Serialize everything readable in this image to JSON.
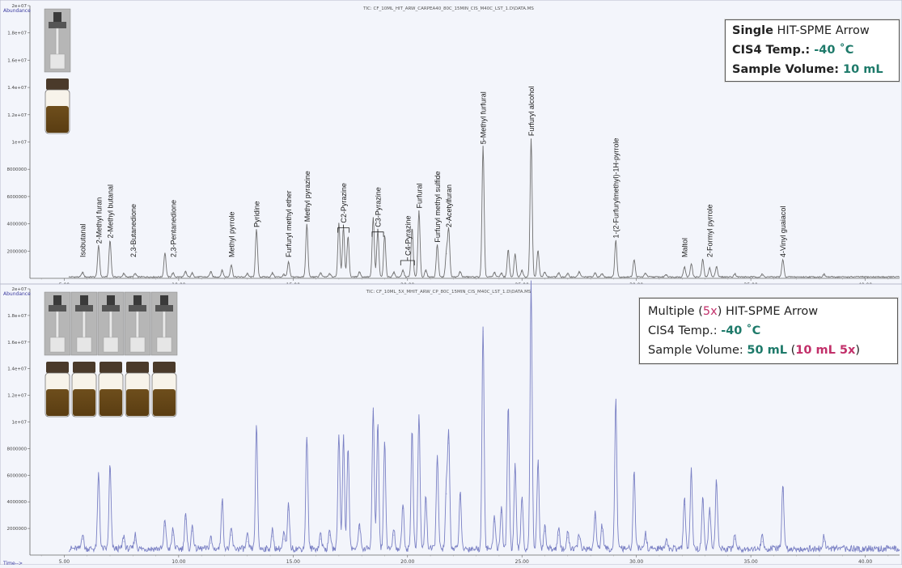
{
  "chart_data": [
    {
      "type": "line",
      "panel": "top",
      "title": "TIC: CF_10ML_HIT_ARW_CARPEA40_80C_15MIN_CIS_M40C_LST_1.D\\DATA.MS",
      "y_axis_label": "Abundance",
      "x_axis_label": "Time-->",
      "xlim": [
        3.5,
        41.5
      ],
      "ylim": [
        0,
        20000000
      ],
      "x_ticks": [
        5,
        10,
        15,
        20,
        25,
        30,
        35,
        40
      ],
      "x_tick_labels": [
        "5.00",
        "10.00",
        "15.00",
        "20.00",
        "25.00",
        "30.00",
        "35.00",
        "40.00"
      ],
      "y_ticks": [
        2000000,
        4000000,
        6000000,
        8000000,
        10000000,
        12000000,
        14000000,
        16000000,
        18000000,
        20000000
      ],
      "y_tick_labels": [
        "2000000",
        "4000000",
        "6000000",
        "8000000",
        "1e+07",
        "1.2e+07",
        "1.4e+07",
        "1.6e+07",
        "1.8e+07",
        "2e+07"
      ],
      "line_color": "#707070",
      "peaks": [
        {
          "rt": 5.8,
          "h": 350000
        },
        {
          "rt": 6.5,
          "h": 2300000
        },
        {
          "rt": 7.0,
          "h": 2700000
        },
        {
          "rt": 7.6,
          "h": 250000
        },
        {
          "rt": 8.1,
          "h": 250000
        },
        {
          "rt": 9.4,
          "h": 1800000
        },
        {
          "rt": 9.75,
          "h": 300000
        },
        {
          "rt": 10.3,
          "h": 400000
        },
        {
          "rt": 10.6,
          "h": 300000
        },
        {
          "rt": 11.4,
          "h": 400000
        },
        {
          "rt": 11.9,
          "h": 500000
        },
        {
          "rt": 12.3,
          "h": 900000
        },
        {
          "rt": 13.0,
          "h": 250000
        },
        {
          "rt": 13.4,
          "h": 3500000
        },
        {
          "rt": 14.1,
          "h": 300000
        },
        {
          "rt": 14.6,
          "h": 200000
        },
        {
          "rt": 14.8,
          "h": 1100000
        },
        {
          "rt": 15.6,
          "h": 3900000
        },
        {
          "rt": 16.2,
          "h": 300000
        },
        {
          "rt": 16.6,
          "h": 250000
        },
        {
          "rt": 17.0,
          "h": 4000000
        },
        {
          "rt": 17.2,
          "h": 3700000
        },
        {
          "rt": 17.4,
          "h": 3000000
        },
        {
          "rt": 17.9,
          "h": 400000
        },
        {
          "rt": 18.5,
          "h": 4400000
        },
        {
          "rt": 18.7,
          "h": 3400000
        },
        {
          "rt": 19.0,
          "h": 3100000
        },
        {
          "rt": 19.4,
          "h": 350000
        },
        {
          "rt": 19.8,
          "h": 500000
        },
        {
          "rt": 20.2,
          "h": 3600000
        },
        {
          "rt": 20.5,
          "h": 4900000
        },
        {
          "rt": 20.8,
          "h": 500000
        },
        {
          "rt": 21.3,
          "h": 2400000
        },
        {
          "rt": 21.7,
          "h": 1800000
        },
        {
          "rt": 21.8,
          "h": 3500000
        },
        {
          "rt": 22.3,
          "h": 400000
        },
        {
          "rt": 23.3,
          "h": 9600000
        },
        {
          "rt": 23.8,
          "h": 350000
        },
        {
          "rt": 24.1,
          "h": 300000
        },
        {
          "rt": 24.4,
          "h": 2000000
        },
        {
          "rt": 24.7,
          "h": 1700000
        },
        {
          "rt": 25.0,
          "h": 500000
        },
        {
          "rt": 25.4,
          "h": 10200000
        },
        {
          "rt": 25.7,
          "h": 2000000
        },
        {
          "rt": 26.0,
          "h": 400000
        },
        {
          "rt": 26.6,
          "h": 300000
        },
        {
          "rt": 27.0,
          "h": 250000
        },
        {
          "rt": 27.5,
          "h": 400000
        },
        {
          "rt": 28.2,
          "h": 300000
        },
        {
          "rt": 28.5,
          "h": 250000
        },
        {
          "rt": 29.1,
          "h": 2700000
        },
        {
          "rt": 29.9,
          "h": 1300000
        },
        {
          "rt": 30.4,
          "h": 300000
        },
        {
          "rt": 31.3,
          "h": 200000
        },
        {
          "rt": 32.1,
          "h": 750000
        },
        {
          "rt": 32.4,
          "h": 1000000
        },
        {
          "rt": 32.9,
          "h": 1300000
        },
        {
          "rt": 33.2,
          "h": 700000
        },
        {
          "rt": 33.5,
          "h": 800000
        },
        {
          "rt": 34.3,
          "h": 250000
        },
        {
          "rt": 35.5,
          "h": 200000
        },
        {
          "rt": 36.4,
          "h": 1300000
        },
        {
          "rt": 38.2,
          "h": 200000
        }
      ],
      "labels": [
        {
          "text": "Isobutanal",
          "rt": 5.8
        },
        {
          "text": "2-Methyl furan",
          "rt": 6.5
        },
        {
          "text": "2-Methyl butanal",
          "rt": 7.0
        },
        {
          "text": "2,3-Butanedione",
          "rt": 8.0
        },
        {
          "text": "2,3-Pentanedione",
          "rt": 9.75
        },
        {
          "text": "Methyl pyrrole",
          "rt": 12.3
        },
        {
          "text": "Pyridine",
          "rt": 13.4
        },
        {
          "text": "Furfuryl methyl ether",
          "rt": 14.8
        },
        {
          "text": "Methyl pyrazine",
          "rt": 15.6
        },
        {
          "text": "C2-Pyrazine",
          "rt": 17.2,
          "bracket": [
            16.95,
            17.45
          ]
        },
        {
          "text": "C3-Pyrazine",
          "rt": 18.7,
          "bracket": [
            18.45,
            18.95
          ]
        },
        {
          "text": "C4-Pyrazine",
          "rt": 20.0,
          "bracket": [
            19.7,
            20.3
          ]
        },
        {
          "text": "Furfural",
          "rt": 20.5
        },
        {
          "text": "Furfuryl methyl sulfide",
          "rt": 21.3
        },
        {
          "text": "2-Acetylfuran",
          "rt": 21.8
        },
        {
          "text": "5-Methyl furfural",
          "rt": 23.3
        },
        {
          "text": "Furfuryl alcohol",
          "rt": 25.4
        },
        {
          "text": "1-(2-Furfurylmethyl)-1H-pyrrole",
          "rt": 29.1
        },
        {
          "text": "Maltol",
          "rt": 32.1
        },
        {
          "text": "2-Formyl pyrrole",
          "rt": 33.2
        },
        {
          "text": "4-Vinyl guaiacol",
          "rt": 36.4
        }
      ]
    },
    {
      "type": "line",
      "panel": "bottom",
      "title": "TIC: CF_10ML_5X_MHIT_ARW_CP_80C_15MIN_CIS_M40C_LST_1.D\\DATA.MS",
      "y_axis_label": "Abundance",
      "x_axis_label": "Time-->",
      "xlim": [
        3.5,
        41.5
      ],
      "ylim": [
        0,
        20000000
      ],
      "x_ticks": [
        5,
        10,
        15,
        20,
        25,
        30,
        35,
        40
      ],
      "x_tick_labels": [
        "5.00",
        "10.00",
        "15.00",
        "20.00",
        "25.00",
        "30.00",
        "35.00",
        "40.00"
      ],
      "y_ticks": [
        2000000,
        4000000,
        6000000,
        8000000,
        10000000,
        12000000,
        14000000,
        16000000,
        18000000,
        20000000
      ],
      "y_tick_labels": [
        "2000000",
        "4000000",
        "6000000",
        "8000000",
        "1e+07",
        "1.2e+07",
        "1.4e+07",
        "1.6e+07",
        "1.8e+07",
        "2e+07"
      ],
      "line_color": "#7a80c4",
      "peaks": [
        {
          "rt": 5.8,
          "h": 1200000
        },
        {
          "rt": 6.5,
          "h": 5700000
        },
        {
          "rt": 7.0,
          "h": 6300000
        },
        {
          "rt": 7.6,
          "h": 1000000
        },
        {
          "rt": 8.1,
          "h": 1100000
        },
        {
          "rt": 9.4,
          "h": 2200000
        },
        {
          "rt": 9.75,
          "h": 1500000
        },
        {
          "rt": 10.3,
          "h": 2700000
        },
        {
          "rt": 10.6,
          "h": 1800000
        },
        {
          "rt": 11.4,
          "h": 900000
        },
        {
          "rt": 11.9,
          "h": 3800000
        },
        {
          "rt": 12.3,
          "h": 1500000
        },
        {
          "rt": 13.0,
          "h": 1000000
        },
        {
          "rt": 13.4,
          "h": 9200000
        },
        {
          "rt": 14.1,
          "h": 1400000
        },
        {
          "rt": 14.6,
          "h": 1200000
        },
        {
          "rt": 14.8,
          "h": 3400000
        },
        {
          "rt": 15.6,
          "h": 8600000
        },
        {
          "rt": 16.2,
          "h": 1200000
        },
        {
          "rt": 16.6,
          "h": 1500000
        },
        {
          "rt": 17.0,
          "h": 8800000
        },
        {
          "rt": 17.2,
          "h": 8500000
        },
        {
          "rt": 17.4,
          "h": 7800000
        },
        {
          "rt": 17.9,
          "h": 2000000
        },
        {
          "rt": 18.5,
          "h": 10800000
        },
        {
          "rt": 18.7,
          "h": 9600000
        },
        {
          "rt": 19.0,
          "h": 8200000
        },
        {
          "rt": 19.4,
          "h": 1500000
        },
        {
          "rt": 19.8,
          "h": 3500000
        },
        {
          "rt": 20.2,
          "h": 9000000
        },
        {
          "rt": 20.5,
          "h": 10200000
        },
        {
          "rt": 20.8,
          "h": 4000000
        },
        {
          "rt": 21.3,
          "h": 7200000
        },
        {
          "rt": 21.7,
          "h": 4600000
        },
        {
          "rt": 21.8,
          "h": 8400000
        },
        {
          "rt": 22.3,
          "h": 4200000
        },
        {
          "rt": 23.3,
          "h": 16800000
        },
        {
          "rt": 23.8,
          "h": 2500000
        },
        {
          "rt": 24.1,
          "h": 3200000
        },
        {
          "rt": 24.4,
          "h": 10800000
        },
        {
          "rt": 24.7,
          "h": 6200000
        },
        {
          "rt": 25.0,
          "h": 4000000
        },
        {
          "rt": 25.4,
          "h": 20000000
        },
        {
          "rt": 25.7,
          "h": 6600000
        },
        {
          "rt": 26.0,
          "h": 1800000
        },
        {
          "rt": 26.6,
          "h": 1500000
        },
        {
          "rt": 27.0,
          "h": 1300000
        },
        {
          "rt": 27.5,
          "h": 1200000
        },
        {
          "rt": 28.2,
          "h": 2800000
        },
        {
          "rt": 28.5,
          "h": 1800000
        },
        {
          "rt": 29.1,
          "h": 11200000
        },
        {
          "rt": 29.9,
          "h": 5700000
        },
        {
          "rt": 30.4,
          "h": 1200000
        },
        {
          "rt": 31.3,
          "h": 800000
        },
        {
          "rt": 32.1,
          "h": 3800000
        },
        {
          "rt": 32.4,
          "h": 5900000
        },
        {
          "rt": 32.9,
          "h": 4000000
        },
        {
          "rt": 33.2,
          "h": 3100000
        },
        {
          "rt": 33.5,
          "h": 5200000
        },
        {
          "rt": 34.3,
          "h": 1200000
        },
        {
          "rt": 35.5,
          "h": 1000000
        },
        {
          "rt": 36.4,
          "h": 4800000
        },
        {
          "rt": 38.2,
          "h": 1000000
        }
      ]
    }
  ],
  "info_top": {
    "line1_a": "Single",
    "line1_b": " HIT-SPME Arrow",
    "line2_a": "CIS4 Temp.: ",
    "line2_b": "-40 ˚C",
    "line3_a": "Sample Volume: ",
    "line3_b": "10 mL"
  },
  "info_bottom": {
    "line1_a": "Multiple (",
    "line1_b": "5x",
    "line1_c": ") HIT-SPME Arrow",
    "line2_a": "CIS4 Temp.: ",
    "line2_b": "-40 ˚C",
    "line3_a": "Sample Volume: ",
    "line3_b": "50 mL",
    "line3_c": " (",
    "line3_d": "10 mL 5x",
    "line3_e": ")"
  }
}
